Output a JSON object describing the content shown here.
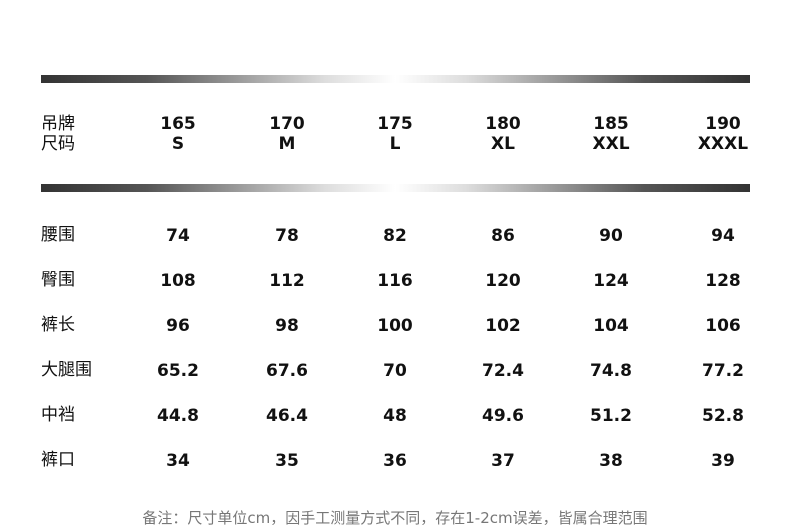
{
  "header": {
    "label_line1": "吊牌",
    "label_line2": "尺码",
    "sizes": [
      {
        "height": "165",
        "size": "S"
      },
      {
        "height": "170",
        "size": "M"
      },
      {
        "height": "175",
        "size": "L"
      },
      {
        "height": "180",
        "size": "XL"
      },
      {
        "height": "185",
        "size": "XXL"
      },
      {
        "height": "190",
        "size": "XXXL"
      }
    ]
  },
  "rows": [
    {
      "label": "腰围",
      "values": [
        "74",
        "78",
        "82",
        "86",
        "90",
        "94"
      ]
    },
    {
      "label": "臀围",
      "values": [
        "108",
        "112",
        "116",
        "120",
        "124",
        "128"
      ]
    },
    {
      "label": "裤长",
      "values": [
        "96",
        "98",
        "100",
        "102",
        "104",
        "106"
      ]
    },
    {
      "label": "大腿围",
      "values": [
        "65.2",
        "67.6",
        "70",
        "72.4",
        "74.8",
        "77.2"
      ]
    },
    {
      "label": "中裆",
      "values": [
        "44.8",
        "46.4",
        "48",
        "49.6",
        "51.2",
        "52.8"
      ]
    },
    {
      "label": "裤口",
      "values": [
        "34",
        "35",
        "36",
        "37",
        "38",
        "39"
      ]
    }
  ],
  "note": "备注：尺寸单位cm，因手工测量方式不同，存在1-2cm误差，皆属合理范围"
}
